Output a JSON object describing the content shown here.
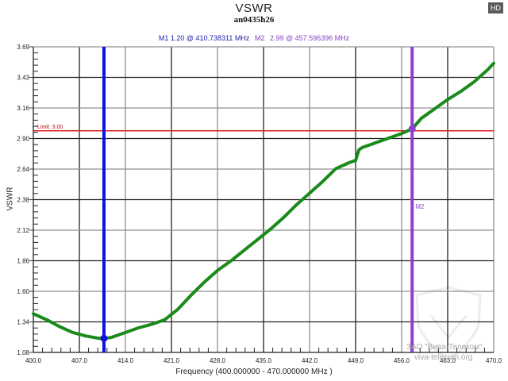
{
  "header": {
    "title": "VSWR",
    "subtitle": "an0435h26",
    "hd_badge": "HD"
  },
  "markers": {
    "m1_label": "M1",
    "m1_text": "1.20 @ 410.738311 MHz",
    "m2_label": "M2",
    "m2_text": "2.99 @ 457.596396 MHz",
    "m2_tag": "M2"
  },
  "limit_label": "Limit: 3.00",
  "watermark": {
    "line1": "ЗАО \"Вива-Телеком\"",
    "line2": "viva-telecom.org"
  },
  "colors": {
    "trace": "#1a8a1a",
    "m1": "#1010e0",
    "m2": "#9040d0",
    "limit": "#e02020",
    "grid_dark": "#222222",
    "grid_gray": "#909090"
  },
  "chart_data": {
    "type": "line",
    "title": "VSWR",
    "subtitle": "an0435h26",
    "xlabel": "Frequency (400.000000 - 470.000000 MHz )",
    "ylabel": "VSWR",
    "xlim": [
      400.0,
      470.0
    ],
    "ylim": [
      1.08,
      3.69
    ],
    "x_ticks": [
      "400.0",
      "407.0",
      "414.0",
      "421.0",
      "428.0",
      "435.0",
      "442.0",
      "449.0",
      "456.0",
      "463.0",
      "470.0"
    ],
    "y_ticks": [
      "3.69",
      "3.43",
      "3.16",
      "2.90",
      "2.64",
      "2.38",
      "2.12",
      "1.86",
      "1.60",
      "1.34",
      "1.08"
    ],
    "grid": true,
    "limit_line": {
      "label": "Limit: 3.00",
      "value": 3.0
    },
    "markers": [
      {
        "name": "M1",
        "x": 410.738311,
        "y": 1.2
      },
      {
        "name": "M2",
        "x": 457.596396,
        "y": 2.99
      }
    ],
    "series": [
      {
        "name": "VSWR",
        "x": [
          400,
          402,
          404,
          406,
          408,
          410,
          411,
          412,
          414,
          416,
          418,
          420,
          422,
          424,
          426,
          428,
          430,
          432,
          434,
          436,
          438,
          440,
          442,
          444,
          446,
          448,
          449,
          449.5,
          450,
          452,
          454,
          456,
          457.6,
          459,
          461,
          463,
          465,
          467,
          469,
          470
        ],
        "y": [
          1.41,
          1.36,
          1.3,
          1.25,
          1.22,
          1.2,
          1.2,
          1.21,
          1.25,
          1.29,
          1.32,
          1.36,
          1.45,
          1.57,
          1.68,
          1.78,
          1.86,
          1.95,
          2.04,
          2.13,
          2.23,
          2.34,
          2.44,
          2.54,
          2.65,
          2.7,
          2.72,
          2.81,
          2.83,
          2.87,
          2.91,
          2.95,
          2.99,
          3.08,
          3.16,
          3.24,
          3.31,
          3.39,
          3.49,
          3.55
        ]
      }
    ]
  }
}
